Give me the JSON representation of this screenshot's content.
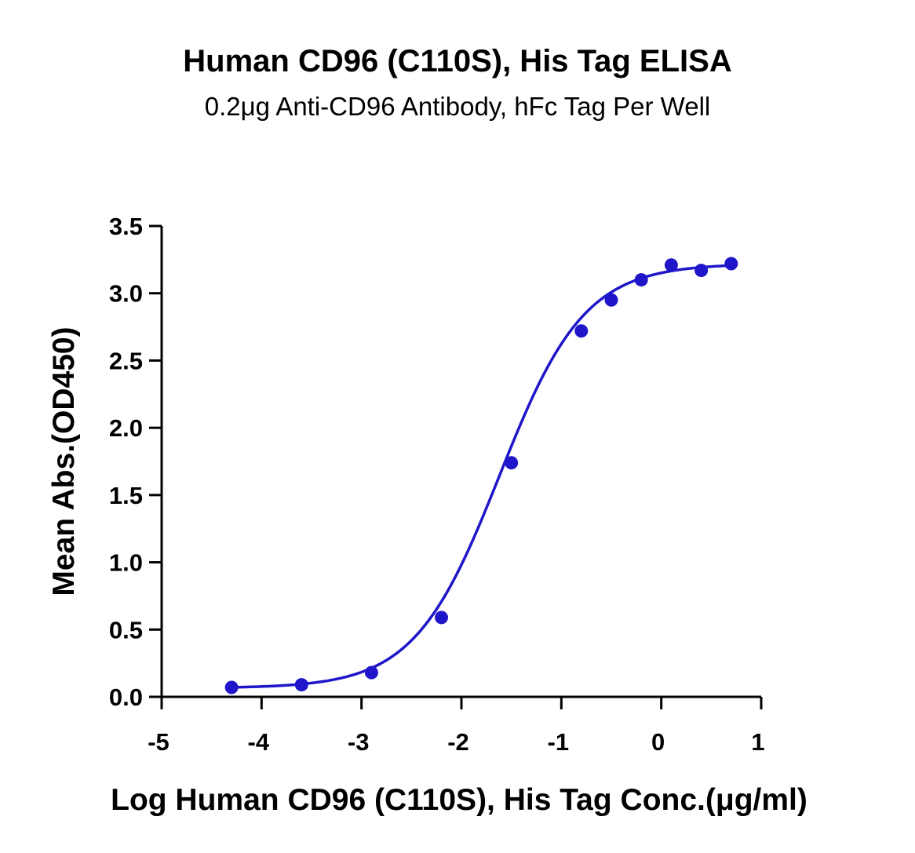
{
  "chart_data": {
    "type": "scatter",
    "title": "Human CD96 (C110S), His Tag ELISA",
    "subtitle": "0.2μg Anti-CD96 Antibody, hFc Tag Per Well",
    "xlabel": "Log Human CD96 (C110S), His Tag Conc.(μg/ml)",
    "ylabel": "Mean Abs.(OD450)",
    "xlim": [
      -5,
      1
    ],
    "ylim": [
      0,
      3.5
    ],
    "x_ticks": [
      -5,
      -4,
      -3,
      -2,
      -1,
      0,
      1
    ],
    "y_ticks": [
      0,
      0.5,
      1,
      1.5,
      2,
      2.5,
      3,
      3.5
    ],
    "x_tick_labels": [
      "-5",
      "-4",
      "-3",
      "-2",
      "-1",
      "0",
      "1"
    ],
    "y_tick_labels": [
      "0.0",
      "0.5",
      "1.0",
      "1.5",
      "2.0",
      "2.5",
      "3.0",
      "3.5"
    ],
    "grid": false,
    "legend": "none",
    "color": "#1f16c9",
    "fit": "sigmoidal (4PL) curve",
    "series": [
      {
        "x": [
          -4.3,
          -3.6,
          -2.9,
          -2.2,
          -1.5,
          -0.8,
          -0.5,
          -0.2,
          0.1,
          0.4,
          0.7
        ],
        "y": [
          0.07,
          0.09,
          0.18,
          0.59,
          1.74,
          2.72,
          2.95,
          3.1,
          3.21,
          3.17,
          3.22
        ]
      }
    ]
  }
}
